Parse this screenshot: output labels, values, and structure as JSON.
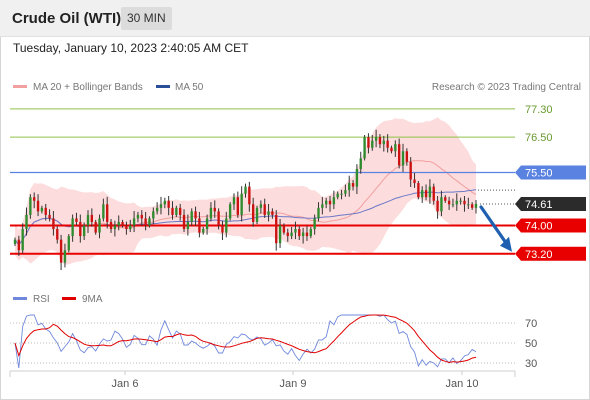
{
  "header": {
    "title": "Crude Oil (WTI)",
    "timeframe": "30 MIN"
  },
  "datetime": "Tuesday, January 10, 2023 2:40:05 AM CET",
  "legend": {
    "ma20_bb": "MA 20 + Bollinger Bands",
    "ma50": "MA 50",
    "rsi": "RSI",
    "ma9": "9MA"
  },
  "credit": "Research © 2023 Trading Central",
  "colors": {
    "bull": "#2e8b2e",
    "bear": "#cc1111",
    "band": "#fbd0d0",
    "ma20": "#f2a0a0",
    "ma50": "#6a78c8",
    "resistance": "#8fc24a",
    "pivot": "#5a82e0",
    "support": "#e80000",
    "last": "#2b2b2b",
    "rsi": "#6f88dc",
    "rsi_ma": "#e00000",
    "arrow": "#2060b0"
  },
  "chart_data": {
    "type": "candlestick",
    "y_range": [
      72.6,
      77.55
    ],
    "levels": [
      {
        "value": 77.3,
        "label": "77.30",
        "kind": "resistance"
      },
      {
        "value": 76.5,
        "label": "76.50",
        "kind": "resistance"
      },
      {
        "value": 75.5,
        "label": "75.50",
        "kind": "pivot"
      },
      {
        "value": 74.61,
        "label": "74.61",
        "kind": "last"
      },
      {
        "value": 74.0,
        "label": "74.00",
        "kind": "support"
      },
      {
        "value": 73.2,
        "label": "73.20",
        "kind": "support"
      }
    ],
    "x_ticks": [
      "Jan 6",
      "Jan 9",
      "Jan 10"
    ],
    "candles_close": [
      73.6,
      73.3,
      73.9,
      74.3,
      74.8,
      74.7,
      74.4,
      74.5,
      74.3,
      74.2,
      73.9,
      73.6,
      72.95,
      73.3,
      73.7,
      74.2,
      74.1,
      73.7,
      74.0,
      74.3,
      74.1,
      73.8,
      74.2,
      74.6,
      74.1,
      73.9,
      74.0,
      74.1,
      74.0,
      73.9,
      74.0,
      74.2,
      74.3,
      74.2,
      74.0,
      74.2,
      74.4,
      74.5,
      74.6,
      74.7,
      74.5,
      74.3,
      74.5,
      74.3,
      73.9,
      74.1,
      74.4,
      74.2,
      73.8,
      73.9,
      74.2,
      74.5,
      74.4,
      74.0,
      73.8,
      74.2,
      74.6,
      74.8,
      74.3,
      74.9,
      75.1,
      74.6,
      74.1,
      74.5,
      74.6,
      74.3,
      74.4,
      74.3,
      73.5,
      74.0,
      73.8,
      73.7,
      73.8,
      73.9,
      73.7,
      73.8,
      73.7,
      73.9,
      74.2,
      74.5,
      74.6,
      74.7,
      74.6,
      74.8,
      74.9,
      74.9,
      75.0,
      75.2,
      75.1,
      75.6,
      75.9,
      76.5,
      76.2,
      76.4,
      76.5,
      76.3,
      76.4,
      76.2,
      76.1,
      76.3,
      75.7,
      76.1,
      75.8,
      75.3,
      75.2,
      74.8,
      75.0,
      74.8,
      75.1,
      74.7,
      74.4,
      74.8,
      74.7,
      74.6,
      74.6,
      74.7,
      74.7,
      74.6,
      74.6,
      74.5,
      74.61
    ],
    "rsi": {
      "ticks": [
        70,
        50,
        30
      ],
      "y_range": [
        20,
        80
      ]
    }
  }
}
